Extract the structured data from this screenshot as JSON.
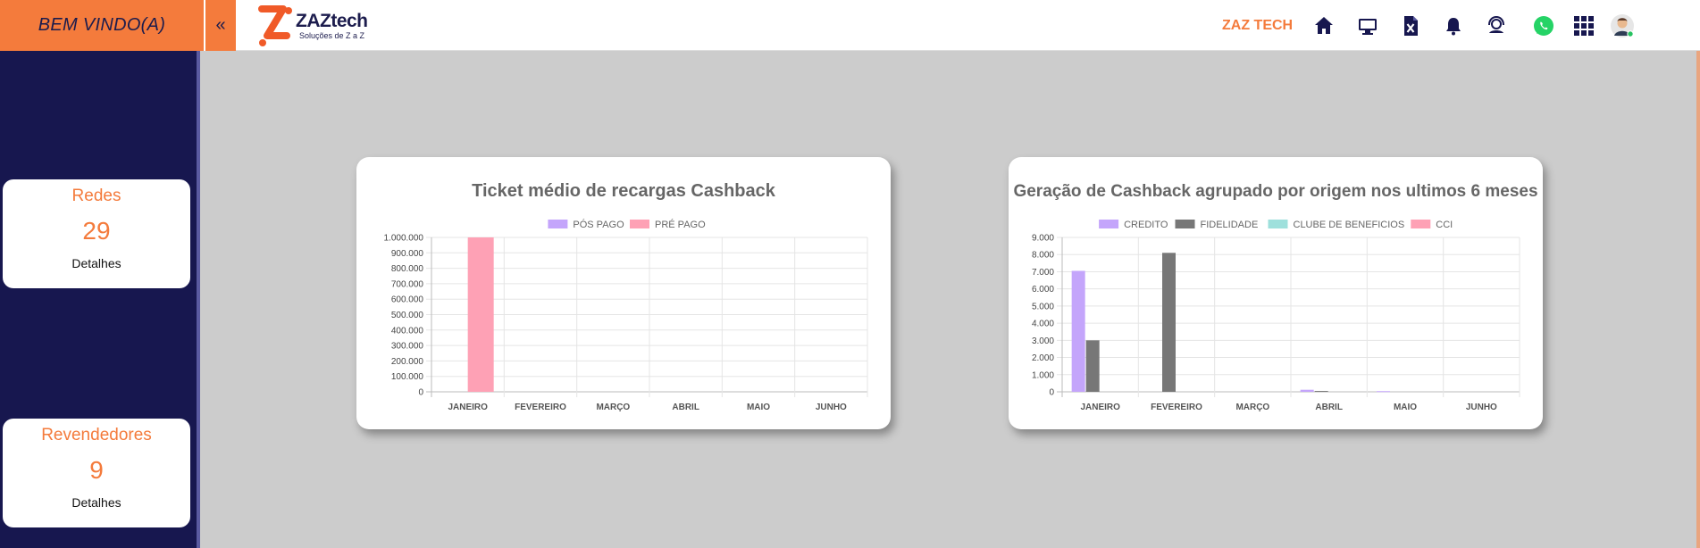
{
  "header": {
    "welcome": "BEM VINDO(A)",
    "collapse_glyph": "«",
    "logo": {
      "name": "ZAZtech",
      "tagline": "Soluções de Z a Z"
    },
    "company": "ZAZ TECH",
    "icons": [
      "home-icon",
      "monitor-icon",
      "excel-icon",
      "bell-icon",
      "support-icon",
      "whatsapp-icon",
      "apps-grid-icon",
      "avatar-icon"
    ],
    "colors": {
      "accent": "#f47b3c",
      "navy": "#17174f",
      "whatsapp": "#25d366"
    }
  },
  "sidebar": {
    "cards": [
      {
        "title": "Redes",
        "value": "29",
        "link": "Detalhes"
      },
      {
        "title": "Revendedores",
        "value": "9",
        "link": "Detalhes"
      }
    ]
  },
  "chart_data": [
    {
      "type": "bar",
      "title": "Ticket médio de recargas Cashback",
      "categories": [
        "JANEIRO",
        "FEVEREIRO",
        "MARÇO",
        "ABRIL",
        "MAIO",
        "JUNHO"
      ],
      "ylim": [
        0,
        1000000
      ],
      "yticks": [
        "0",
        "100.000",
        "200.000",
        "300.000",
        "400.000",
        "500.000",
        "600.000",
        "700.000",
        "800.000",
        "900.000",
        "1.000.000"
      ],
      "legend_position": "top",
      "grid": true,
      "series": [
        {
          "name": "PÓS PAGO",
          "color": "#c4a5fb",
          "values": [
            0,
            0,
            0,
            0,
            0,
            0
          ]
        },
        {
          "name": "PRÉ PAGO",
          "color": "#fea1b5",
          "values": [
            1000000,
            0,
            0,
            0,
            0,
            0
          ]
        }
      ]
    },
    {
      "type": "bar",
      "title": "Geração de Cashback agrupado por origem nos ultimos 6 meses",
      "categories": [
        "JANEIRO",
        "FEVEREIRO",
        "MARÇO",
        "ABRIL",
        "MAIO",
        "JUNHO"
      ],
      "ylim": [
        0,
        9000
      ],
      "yticks": [
        "0",
        "1.000",
        "2.000",
        "3.000",
        "4.000",
        "5.000",
        "6.000",
        "7.000",
        "8.000",
        "9.000"
      ],
      "legend_position": "top",
      "grid": true,
      "series": [
        {
          "name": "CREDITO",
          "color": "#c4a5fb",
          "values": [
            7050,
            0,
            0,
            120,
            40,
            0
          ]
        },
        {
          "name": "FIDELIDADE",
          "color": "#777777",
          "values": [
            3000,
            8100,
            0,
            50,
            0,
            0
          ]
        },
        {
          "name": "CLUBE DE BENEFICIOS",
          "color": "#9ee0dc",
          "values": [
            0,
            0,
            0,
            0,
            0,
            0
          ]
        },
        {
          "name": "CCI",
          "color": "#fea1b5",
          "values": [
            0,
            0,
            0,
            0,
            0,
            0
          ]
        }
      ]
    }
  ]
}
